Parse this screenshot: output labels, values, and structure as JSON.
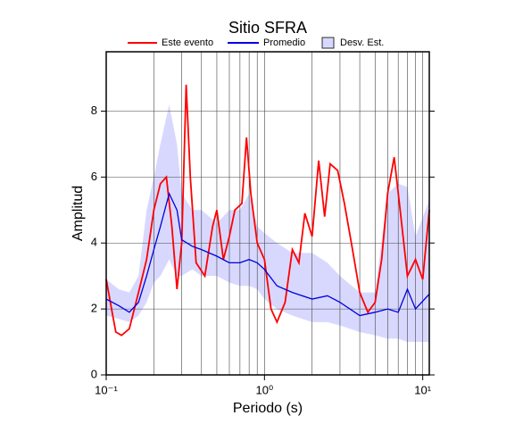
{
  "chart_data": {
    "type": "line",
    "title": "Sitio SFRA",
    "xlabel": "Periodo (s)",
    "ylabel": "Amplitud",
    "xscale": "log",
    "xlim": [
      0.1,
      11
    ],
    "ylim": [
      0,
      9.8
    ],
    "xticks": [
      {
        "value": 0.1,
        "label": "10⁻¹"
      },
      {
        "value": 1,
        "label": "10⁰"
      },
      {
        "value": 10,
        "label": "10¹"
      }
    ],
    "xminor": [
      0.2,
      0.3,
      0.4,
      0.5,
      0.6,
      0.7,
      0.8,
      0.9,
      2,
      3,
      4,
      5,
      6,
      7,
      8,
      9
    ],
    "yticks": [
      0,
      2,
      4,
      6,
      8
    ],
    "grid": true,
    "series": [
      {
        "name": "Este evento",
        "color": "#ff0000",
        "x": [
          0.1,
          0.11,
          0.115,
          0.125,
          0.14,
          0.16,
          0.18,
          0.2,
          0.22,
          0.24,
          0.26,
          0.28,
          0.3,
          0.32,
          0.34,
          0.37,
          0.42,
          0.47,
          0.5,
          0.55,
          0.6,
          0.65,
          0.72,
          0.77,
          0.82,
          0.9,
          1.0,
          1.1,
          1.2,
          1.35,
          1.5,
          1.65,
          1.8,
          2.0,
          2.2,
          2.4,
          2.6,
          2.9,
          3.2,
          3.6,
          4.0,
          4.5,
          5.0,
          5.5,
          6.0,
          6.6,
          7.2,
          8.0,
          9.0,
          10,
          11
        ],
        "values": [
          2.9,
          1.8,
          1.3,
          1.2,
          1.4,
          2.5,
          3.5,
          5.0,
          5.8,
          6.0,
          4.5,
          2.6,
          4.0,
          8.8,
          6.0,
          3.4,
          3.0,
          4.5,
          5.0,
          3.5,
          4.2,
          5.0,
          5.2,
          7.2,
          5.5,
          4.0,
          3.5,
          2.0,
          1.6,
          2.2,
          3.8,
          3.4,
          4.9,
          4.2,
          6.5,
          4.8,
          6.4,
          6.2,
          5.2,
          3.8,
          2.5,
          1.9,
          2.2,
          3.5,
          5.5,
          6.6,
          5.0,
          3.0,
          3.5,
          2.9,
          5.0
        ]
      },
      {
        "name": "Promedio",
        "color": "#0000dd",
        "x": [
          0.1,
          0.12,
          0.14,
          0.16,
          0.18,
          0.2,
          0.22,
          0.25,
          0.28,
          0.3,
          0.35,
          0.4,
          0.5,
          0.6,
          0.7,
          0.8,
          0.9,
          1.0,
          1.2,
          1.5,
          2,
          2.5,
          3,
          4,
          5,
          6,
          7,
          8,
          9,
          11
        ],
        "values": [
          2.3,
          2.1,
          1.9,
          2.2,
          3.0,
          3.8,
          4.5,
          5.5,
          5.0,
          4.1,
          3.9,
          3.8,
          3.6,
          3.4,
          3.4,
          3.5,
          3.4,
          3.2,
          2.7,
          2.5,
          2.3,
          2.4,
          2.2,
          1.8,
          1.9,
          2.0,
          1.9,
          2.6,
          2.0,
          2.45
        ]
      }
    ],
    "band": {
      "name": "Desv. Est.",
      "color": "#d8d8ff",
      "x": [
        0.1,
        0.12,
        0.14,
        0.16,
        0.18,
        0.2,
        0.22,
        0.25,
        0.28,
        0.3,
        0.35,
        0.4,
        0.5,
        0.6,
        0.7,
        0.8,
        0.9,
        1.0,
        1.2,
        1.5,
        2,
        2.5,
        3,
        4,
        5,
        6,
        7,
        8,
        9,
        11
      ],
      "lower": [
        1.8,
        1.7,
        1.6,
        1.8,
        2.2,
        2.8,
        3.0,
        3.5,
        3.0,
        3.0,
        3.2,
        3.0,
        3.0,
        2.8,
        2.7,
        2.7,
        2.6,
        2.3,
        2.0,
        1.8,
        1.6,
        1.6,
        1.5,
        1.3,
        1.2,
        1.1,
        1.1,
        1.0,
        1.0,
        1.0
      ],
      "upper": [
        2.9,
        2.6,
        2.5,
        3.0,
        5.0,
        6.0,
        7.0,
        8.2,
        7.0,
        5.5,
        5.0,
        5.0,
        4.6,
        5.0,
        5.0,
        5.5,
        4.5,
        4.3,
        4.0,
        3.7,
        3.7,
        3.4,
        3.0,
        2.5,
        2.5,
        5.5,
        5.8,
        5.7,
        4.2,
        5.3
      ]
    }
  }
}
